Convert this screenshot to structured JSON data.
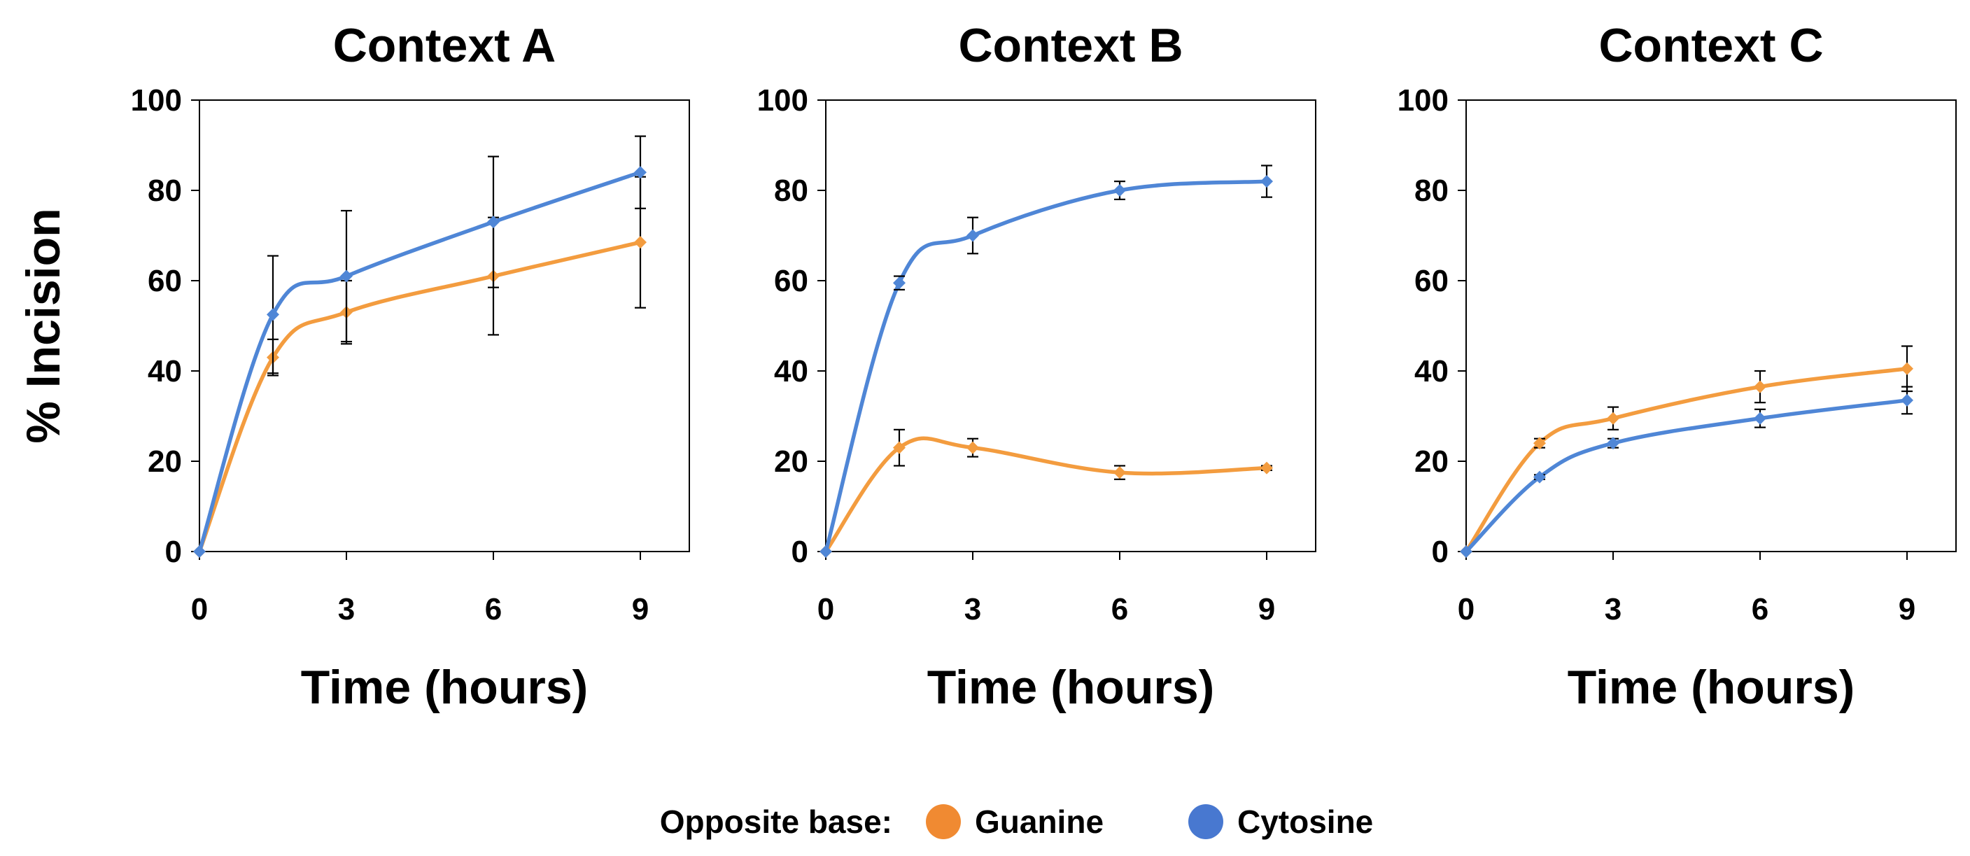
{
  "chart_data": [
    {
      "type": "line",
      "title": "Context A",
      "xlabel": "Time (hours)",
      "ylabel": "% Incision",
      "x": [
        0,
        1.5,
        3,
        6,
        9
      ],
      "xlim": [
        0,
        10
      ],
      "ylim": [
        0,
        100
      ],
      "xticks": [
        0,
        3,
        6,
        9
      ],
      "yticks": [
        0,
        20,
        40,
        60,
        80,
        100
      ],
      "series": [
        {
          "name": "Guanine",
          "color": "#F39C3F",
          "values": [
            0,
            43,
            53,
            61,
            68.5
          ],
          "errors": [
            0,
            4,
            7,
            13,
            14.5
          ]
        },
        {
          "name": "Cytosine",
          "color": "#4F86D6",
          "values": [
            0,
            52.5,
            61,
            73,
            84
          ],
          "errors": [
            0,
            13,
            14.5,
            14.5,
            8
          ]
        }
      ]
    },
    {
      "type": "line",
      "title": "Context B",
      "xlabel": "Time (hours)",
      "ylabel": "",
      "x": [
        0,
        1.5,
        3,
        6,
        9
      ],
      "xlim": [
        0,
        10
      ],
      "ylim": [
        0,
        100
      ],
      "xticks": [
        0,
        3,
        6,
        9
      ],
      "yticks": [
        0,
        20,
        40,
        60,
        80,
        100
      ],
      "series": [
        {
          "name": "Guanine",
          "color": "#F39C3F",
          "values": [
            0,
            23,
            23,
            17.5,
            18.5
          ],
          "errors": [
            0,
            4,
            2,
            1.5,
            0.5
          ]
        },
        {
          "name": "Cytosine",
          "color": "#4F86D6",
          "values": [
            0,
            59.5,
            70,
            80,
            82
          ],
          "errors": [
            0,
            1.5,
            4,
            2,
            3.5
          ]
        }
      ]
    },
    {
      "type": "line",
      "title": "Context C",
      "xlabel": "Time (hours)",
      "ylabel": "",
      "x": [
        0,
        1.5,
        3,
        6,
        9
      ],
      "xlim": [
        0,
        10
      ],
      "ylim": [
        0,
        100
      ],
      "xticks": [
        0,
        3,
        6,
        9
      ],
      "yticks": [
        0,
        20,
        40,
        60,
        80,
        100
      ],
      "series": [
        {
          "name": "Guanine",
          "color": "#F39C3F",
          "values": [
            0,
            24,
            29.5,
            36.5,
            40.5
          ],
          "errors": [
            0,
            1,
            2.5,
            3.5,
            5
          ]
        },
        {
          "name": "Cytosine",
          "color": "#4F86D6",
          "values": [
            0,
            16.5,
            24,
            29.5,
            33.5
          ],
          "errors": [
            0,
            0.5,
            1,
            2,
            3
          ]
        }
      ]
    }
  ],
  "legend": {
    "label": "Opposite base:",
    "items": [
      {
        "name": "Guanine",
        "color": "#F08A32"
      },
      {
        "name": "Cytosine",
        "color": "#4878D0"
      }
    ]
  },
  "colors": {
    "error_bar": "#000000",
    "axis_frame": "#000000"
  }
}
